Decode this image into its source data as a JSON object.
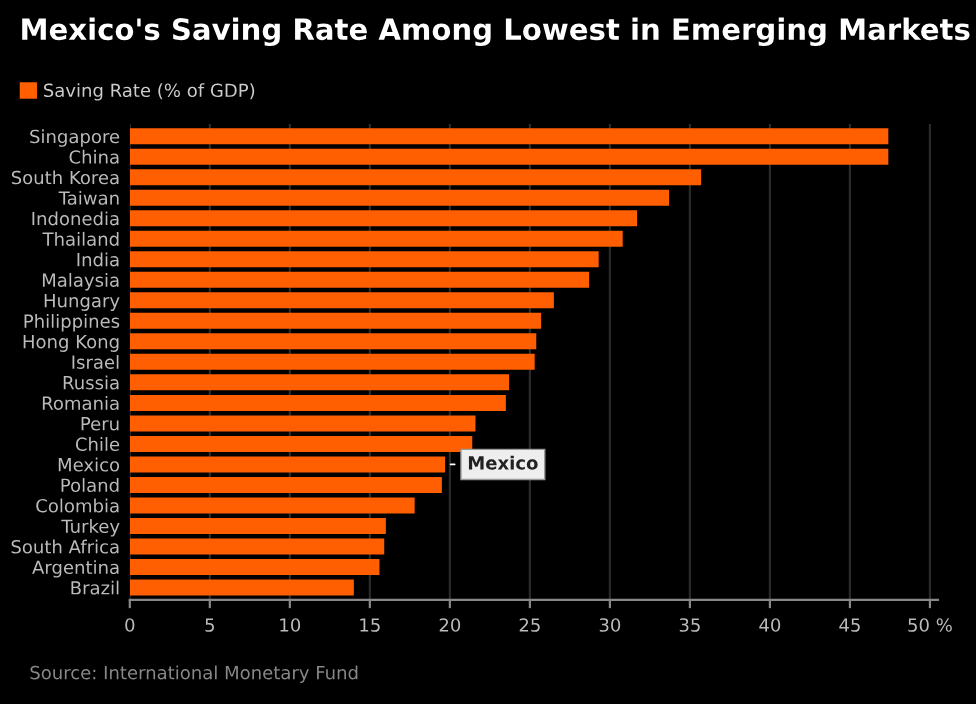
{
  "chart_data": {
    "type": "bar",
    "orientation": "horizontal",
    "title": "Mexico's Saving Rate Among Lowest in Emerging Markets",
    "categories": [
      "Singapore",
      "China",
      "South Korea",
      "Taiwan",
      "Indonedia",
      "Thailand",
      "India",
      "Malaysia",
      "Hungary",
      "Philippines",
      "Hong Kong",
      "Israel",
      "Russia",
      "Romania",
      "Peru",
      "Chile",
      "Mexico",
      "Poland",
      "Colombia",
      "Turkey",
      "South Africa",
      "Argentina",
      "Brazil"
    ],
    "series": [
      {
        "name": "Saving Rate (% of GDP)",
        "color": "#ff5f00",
        "values": [
          47.4,
          47.4,
          35.7,
          33.7,
          31.7,
          30.8,
          29.3,
          28.7,
          26.5,
          25.7,
          25.4,
          25.3,
          23.7,
          23.5,
          21.6,
          21.4,
          19.7,
          19.5,
          17.8,
          16.0,
          15.9,
          15.6,
          14.0
        ]
      }
    ],
    "xlim": [
      0,
      50.5
    ],
    "xticks": [
      0,
      5,
      10,
      15,
      20,
      25,
      30,
      35,
      40,
      45,
      {
        "value": 50,
        "label": "50 %"
      }
    ],
    "grid": "x",
    "legend": "top left",
    "annotations": [
      {
        "text": "Mexico",
        "x": 19.7,
        "y": "Mexico"
      },
      "Source: International Monetary Fund"
    ]
  }
}
